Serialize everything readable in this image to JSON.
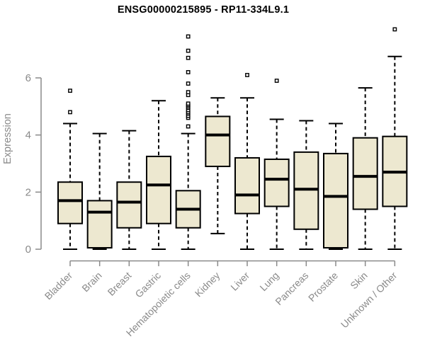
{
  "chart": {
    "title": "ENSG00000215895 - RP11-334L9.1",
    "ylabel": "Expression"
  },
  "colors": {
    "box_fill": "#EDE8D0",
    "box_stroke": "#000000",
    "median": "#000000",
    "outlier_fill": "#FFFFFF",
    "axis": "#8A8A8A",
    "title": "#000000",
    "background": "#FFFFFF"
  },
  "chart_data": {
    "type": "boxplot",
    "title": "ENSG00000215895 - RP11-334L9.1",
    "xlabel": "",
    "ylabel": "Expression",
    "ylim": [
      0,
      6
    ],
    "yticks": [
      0,
      2,
      4,
      6
    ],
    "grid": false,
    "legend": null,
    "categories": [
      "Bladder",
      "Brain",
      "Breast",
      "Gastric",
      "Hematopoietic cells",
      "Kidney",
      "Liver",
      "Lung",
      "Pancreas",
      "Prostate",
      "Skin",
      "Unknown / Other"
    ],
    "boxes": [
      {
        "category": "Bladder",
        "min": 0,
        "q1": 0.9,
        "median": 1.7,
        "q3": 2.35,
        "max": 4.4,
        "outliers": [
          4.8,
          5.55
        ]
      },
      {
        "category": "Brain",
        "min": 0,
        "q1": 0.05,
        "median": 1.3,
        "q3": 1.7,
        "max": 4.05,
        "outliers": []
      },
      {
        "category": "Breast",
        "min": 0,
        "q1": 0.75,
        "median": 1.65,
        "q3": 2.35,
        "max": 4.15,
        "outliers": []
      },
      {
        "category": "Gastric",
        "min": 0,
        "q1": 0.9,
        "median": 2.25,
        "q3": 3.25,
        "max": 5.2,
        "outliers": []
      },
      {
        "category": "Hematopoietic cells",
        "min": 0,
        "q1": 0.75,
        "median": 1.4,
        "q3": 2.05,
        "max": 4.05,
        "outliers": [
          4.3,
          4.6,
          4.67,
          4.75,
          4.8,
          4.87,
          4.95,
          5.0,
          5.05,
          5.1,
          5.4,
          5.5,
          5.8,
          6.2,
          6.7,
          6.95,
          7.45
        ]
      },
      {
        "category": "Kidney",
        "min": 0.55,
        "q1": 2.9,
        "median": 4.0,
        "q3": 4.65,
        "max": 5.3,
        "outliers": []
      },
      {
        "category": "Liver",
        "min": 0,
        "q1": 1.25,
        "median": 1.9,
        "q3": 3.2,
        "max": 5.3,
        "outliers": [
          6.1
        ]
      },
      {
        "category": "Lung",
        "min": 0,
        "q1": 1.5,
        "median": 2.45,
        "q3": 3.15,
        "max": 4.55,
        "outliers": [
          5.9
        ]
      },
      {
        "category": "Pancreas",
        "min": 0,
        "q1": 0.7,
        "median": 2.1,
        "q3": 3.4,
        "max": 4.5,
        "outliers": []
      },
      {
        "category": "Prostate",
        "min": 0,
        "q1": 0.05,
        "median": 1.85,
        "q3": 3.35,
        "max": 4.4,
        "outliers": []
      },
      {
        "category": "Skin",
        "min": 0,
        "q1": 1.4,
        "median": 2.55,
        "q3": 3.9,
        "max": 5.65,
        "outliers": []
      },
      {
        "category": "Unknown / Other",
        "min": 0,
        "q1": 1.5,
        "median": 2.7,
        "q3": 3.95,
        "max": 6.75,
        "outliers": [
          7.7
        ]
      }
    ]
  }
}
